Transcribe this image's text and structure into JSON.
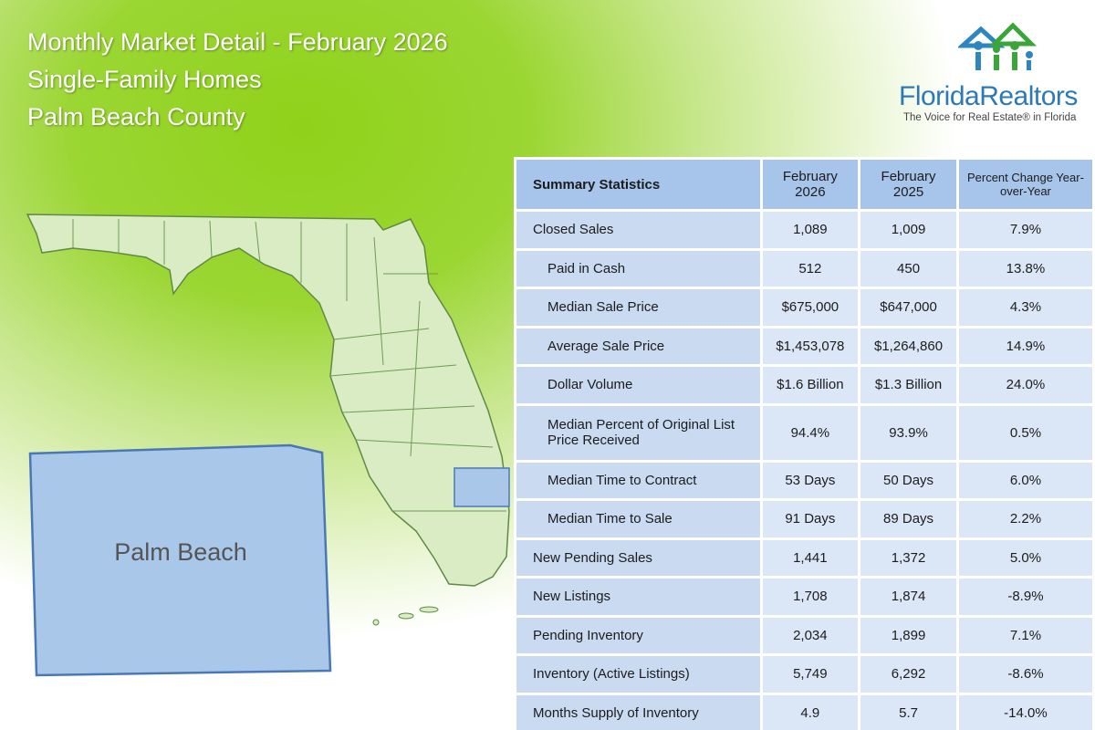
{
  "header": {
    "lines": [
      "Monthly Market Detail - February 2026",
      "Single-Family Homes",
      "Palm Beach County"
    ]
  },
  "logo": {
    "name_part1": "Florida",
    "name_part2": "Realtors",
    "tagline": "The Voice for Real Estate® in Florida"
  },
  "map": {
    "county_label": "Palm Beach"
  },
  "table": {
    "columns": [
      "Summary Statistics",
      "February 2026",
      "February 2025",
      "Percent Change Year-over-Year"
    ],
    "rows": [
      [
        "Closed Sales",
        "1,089",
        "1,009",
        "7.9%"
      ],
      [
        "Paid in Cash",
        "512",
        "450",
        "13.8%"
      ],
      [
        "Median Sale Price",
        "$675,000",
        "$647,000",
        "4.3%"
      ],
      [
        "Average Sale Price",
        "$1,453,078",
        "$1,264,860",
        "14.9%"
      ],
      [
        "Dollar Volume",
        "$1.6 Billion",
        "$1.3 Billion",
        "24.0%"
      ],
      [
        "Median Percent of Original List Price Received",
        "94.4%",
        "93.9%",
        "0.5%"
      ],
      [
        "Median Time to Contract",
        "53 Days",
        "50 Days",
        "6.0%"
      ],
      [
        "Median Time to Sale",
        "91 Days",
        "89 Days",
        "2.2%"
      ],
      [
        "New Pending Sales",
        "1,441",
        "1,372",
        "5.0%"
      ],
      [
        "New Listings",
        "1,708",
        "1,874",
        "-8.9%"
      ],
      [
        "Pending Inventory",
        "2,034",
        "1,899",
        "7.1%"
      ],
      [
        "Inventory (Active Listings)",
        "5,749",
        "6,292",
        "-8.6%"
      ],
      [
        "Months Supply of Inventory",
        "4.9",
        "5.7",
        "-14.0%"
      ]
    ]
  }
}
